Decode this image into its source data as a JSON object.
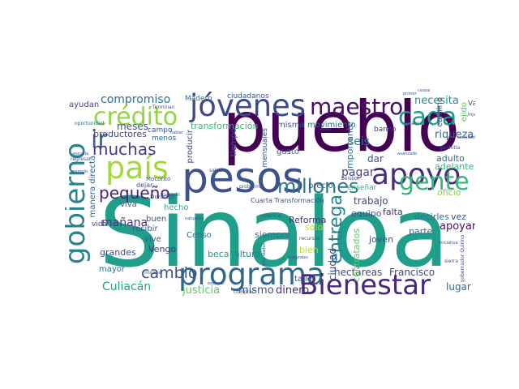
{
  "words": [
    {
      "text": "Sinaloa",
      "color": "#1f9e89"
    },
    {
      "text": "pueblo",
      "color": "#440154"
    },
    {
      "text": "pesos",
      "color": "#3b528b"
    },
    {
      "text": "programa",
      "color": "#31688e"
    },
    {
      "text": "Bienestar",
      "color": "#482878"
    },
    {
      "text": "jóvenes",
      "color": "#3e4989"
    },
    {
      "text": "apoyo",
      "color": "#472d7b"
    },
    {
      "text": "país",
      "color": "#a0da39"
    },
    {
      "text": "gobierno",
      "color": "#26828e"
    },
    {
      "text": "gente",
      "color": "#35b779"
    },
    {
      "text": "maestro",
      "color": "#471063"
    },
    {
      "text": "crédito",
      "color": "#90d743"
    },
    {
      "text": "cada",
      "color": "#1f9a8a"
    },
    {
      "text": "millones",
      "color": "#2a788e"
    },
    {
      "text": "ir",
      "color": "#31688e"
    },
    {
      "text": "muchas",
      "color": "#443983"
    },
    {
      "text": "pequeño",
      "color": "#482475"
    },
    {
      "text": "entrega",
      "color": "#26828e"
    },
    {
      "text": "cambio",
      "color": "#3b528b"
    },
    {
      "text": "mañana",
      "color": "#46327e"
    },
    {
      "text": "compromiso",
      "color": "#2c728e"
    },
    {
      "text": "Culiacán",
      "color": "#21a685"
    },
    {
      "text": "justicia",
      "color": "#5ec962"
    },
    {
      "text": "mismo",
      "color": "#3b528b"
    },
    {
      "text": "dinero",
      "color": "#472d7b"
    },
    {
      "text": "Francisco",
      "color": "#404688"
    },
    {
      "text": "hectáreas",
      "color": "#3e4989"
    },
    {
      "text": "lugar",
      "color": "#31688e"
    },
    {
      "text": "apoyar",
      "color": "#471063"
    },
    {
      "text": "riqueza",
      "color": "#2c728e"
    },
    {
      "text": "necesita",
      "color": "#238a8d"
    },
    {
      "text": "seis",
      "color": "#26828e"
    },
    {
      "text": "pagar",
      "color": "#3e4989"
    },
    {
      "text": "dar",
      "color": "#3b528b"
    },
    {
      "text": "trabajo",
      "color": "#3e4989"
    },
    {
      "text": "falta",
      "color": "#482878"
    },
    {
      "text": "equipo",
      "color": "#3b528b"
    },
    {
      "text": "oficio",
      "color": "#84d44b"
    },
    {
      "text": "adulto",
      "color": "#31688e"
    },
    {
      "text": "adelante",
      "color": "#35b779"
    },
    {
      "text": "decirles",
      "color": "#2c728e"
    },
    {
      "text": "vez",
      "color": "#3e4989"
    },
    {
      "text": "joven",
      "color": "#3b528b"
    },
    {
      "text": "parte",
      "color": "#2c728e"
    },
    {
      "text": "bien",
      "color": "#bddf26"
    },
    {
      "text": "sólo",
      "color": "#b5de2b"
    },
    {
      "text": "siempre",
      "color": "#2a788e"
    },
    {
      "text": "Reforma",
      "color": "#46327e"
    },
    {
      "text": "taller",
      "color": "#3b528b"
    },
    {
      "text": "altura",
      "color": "#26828e"
    },
    {
      "text": "ciudad",
      "color": "#414487"
    },
    {
      "text": "contratados",
      "color": "#5ec962"
    },
    {
      "text": "importante",
      "color": "#2c728e"
    },
    {
      "text": "movimiento",
      "color": "#31688e"
    },
    {
      "text": "transformación",
      "color": "#35b779"
    },
    {
      "text": "meses",
      "color": "#3b528b"
    },
    {
      "text": "productores",
      "color": "#404688"
    },
    {
      "text": "Censo",
      "color": "#2c728e"
    },
    {
      "text": "beca",
      "color": "#1f9e89"
    },
    {
      "text": "grandes",
      "color": "#3e4989"
    },
    {
      "text": "mayor",
      "color": "#31688e"
    },
    {
      "text": "Vengo",
      "color": "#46327e"
    },
    {
      "text": "vive",
      "color": "#3b528b"
    },
    {
      "text": "recibir",
      "color": "#3b528b"
    },
    {
      "text": "buen",
      "color": "#3b528b"
    },
    {
      "text": "hecho",
      "color": "#29af7f"
    },
    {
      "text": "viva",
      "color": "#3b528b"
    },
    {
      "text": "vida",
      "color": "#3e4989"
    },
    {
      "text": "manera directa",
      "color": "#31688e"
    },
    {
      "text": "ayudan",
      "color": "#414487"
    },
    {
      "text": "campo",
      "color": "#3b528b"
    },
    {
      "text": "menos",
      "color": "#31688e"
    },
    {
      "text": "producir",
      "color": "#3e4989"
    },
    {
      "text": "tiempo",
      "color": "#3b528b"
    },
    {
      "text": "mensuales",
      "color": "#3b528b"
    },
    {
      "text": "gusto",
      "color": "#3b528b"
    },
    {
      "text": "precio",
      "color": "#3b528b"
    },
    {
      "text": "enseñar",
      "color": "#35b779"
    },
    {
      "text": "misma",
      "color": "#3b528b"
    },
    {
      "text": "ciudadanos",
      "color": "#3b528b"
    },
    {
      "text": "Madero",
      "color": "#2c728e"
    },
    {
      "text": "Vaya",
      "color": "#3b528b"
    },
    {
      "text": "camino",
      "color": "#3b528b"
    },
    {
      "text": "ejido",
      "color": "#5ec962"
    },
    {
      "text": "banco",
      "color": "#3e4989"
    },
    {
      "text": "Cuarta Transformación",
      "color": "#3b528b"
    },
    {
      "text": "dejar",
      "color": "#3b528b"
    },
    {
      "text": "Mocorito",
      "color": "#3b528b"
    },
    {
      "text": "Durango",
      "color": "#3b528b"
    },
    {
      "text": "Terminan",
      "color": "#3b528b"
    },
    {
      "text": "oportunidad",
      "color": "#2c728e"
    },
    {
      "text": "pasado",
      "color": "#3b528b"
    },
    {
      "text": "problema",
      "color": "#3b528b"
    },
    {
      "text": "gobernador Quirino",
      "color": "#3b528b"
    },
    {
      "text": "salud",
      "color": "#3b528b"
    },
    {
      "text": "garantía",
      "color": "#3b528b"
    },
    {
      "text": "primer",
      "color": "#3b528b"
    },
    {
      "text": "palabra",
      "color": "#3b528b"
    },
    {
      "text": "béisbol",
      "color": "#3b528b"
    },
    {
      "text": "recursos",
      "color": "#3b528b"
    },
    {
      "text": "integrales",
      "color": "#3b528b"
    },
    {
      "text": "comprar",
      "color": "#3b528b"
    },
    {
      "text": "escasos",
      "color": "#3b528b"
    },
    {
      "text": "regresar",
      "color": "#3b528b"
    },
    {
      "text": "ejemplo",
      "color": "#3b528b"
    },
    {
      "text": "escuela",
      "color": "#3b528b"
    },
    {
      "text": "iniciativa",
      "color": "#3b528b"
    },
    {
      "text": "sierra",
      "color": "#3b528b"
    },
    {
      "text": "Amor",
      "color": "#3b528b"
    },
    {
      "text": "violencia",
      "color": "#3b528b"
    },
    {
      "text": "naturales",
      "color": "#3b528b"
    },
    {
      "text": "hablar",
      "color": "#3b528b"
    },
    {
      "text": "Issste",
      "color": "#3b528b"
    },
    {
      "text": "avanzado",
      "color": "#3b528b"
    },
    {
      "text": "frijol",
      "color": "#3b528b"
    },
    {
      "text": "cantidad",
      "color": "#3b528b"
    },
    {
      "text": "interesa",
      "color": "#3b528b"
    },
    {
      "text": "actividades",
      "color": "#3b528b"
    }
  ]
}
